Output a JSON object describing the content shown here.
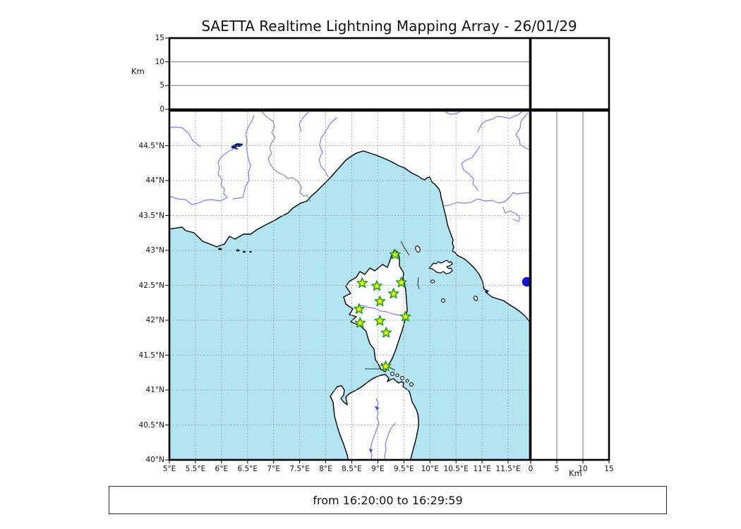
{
  "title": "SAETTA Realtime Lightning Mapping Array - 26/01/29",
  "status_bar": {
    "text": "from 16:20:00 to 16:29:59"
  },
  "axes": {
    "altitude_unit": "Km",
    "top_panel_ticks": [
      {
        "label": "15",
        "value": 15
      },
      {
        "label": "10",
        "value": 10
      },
      {
        "label": "5",
        "value": 5
      },
      {
        "label": "0",
        "value": 0
      }
    ],
    "right_panel_ticks": [
      {
        "label": "0",
        "value": 0
      },
      {
        "label": "5",
        "value": 5
      },
      {
        "label": "10",
        "value": 10
      },
      {
        "label": "15",
        "value": 15
      }
    ],
    "lon_ticks": [
      {
        "label": "5°E",
        "value": 5
      },
      {
        "label": "5.5°E",
        "value": 5.5
      },
      {
        "label": "6°E",
        "value": 6
      },
      {
        "label": "6.5°E",
        "value": 6.5
      },
      {
        "label": "7°E",
        "value": 7
      },
      {
        "label": "7.5°E",
        "value": 7.5
      },
      {
        "label": "8°E",
        "value": 8
      },
      {
        "label": "8.5°E",
        "value": 8.5
      },
      {
        "label": "9°E",
        "value": 9
      },
      {
        "label": "9.5°E",
        "value": 9.5
      },
      {
        "label": "10°E",
        "value": 10
      },
      {
        "label": "10.5°E",
        "value": 10.5
      },
      {
        "label": "11°E",
        "value": 11
      },
      {
        "label": "11.5°E",
        "value": 11.5
      }
    ],
    "lat_ticks": [
      {
        "label": "44.5°N",
        "value": 44.5
      },
      {
        "label": "44°N",
        "value": 44
      },
      {
        "label": "43.5°N",
        "value": 43.5
      },
      {
        "label": "43°N",
        "value": 43
      },
      {
        "label": "42.5°N",
        "value": 42.5
      },
      {
        "label": "42°N",
        "value": 42
      },
      {
        "label": "41.5°N",
        "value": 41.5
      },
      {
        "label": "41°N",
        "value": 41
      },
      {
        "label": "40.5°N",
        "value": 40.5
      },
      {
        "label": "40°N",
        "value": 40
      }
    ]
  },
  "chart_data": {
    "type": "scatter",
    "title": "SAETTA Realtime Lightning Mapping Array - 26/01/29",
    "date": "26/01/29",
    "time_window": {
      "from": "16:20:00",
      "to": "16:29:59"
    },
    "map_panel": {
      "region": "Western Mediterranean: southern France / NW Italy coast, Corsica, Sardinia, Elba",
      "lon_range": [
        5,
        11.93
      ],
      "lat_range": [
        40,
        45
      ],
      "grid": true,
      "sea_color": "#b2e4f2",
      "land_color": "#ffffff",
      "river_color": "#7c7cf0",
      "border_color": "#8a8a8a",
      "lake_color": "#001580",
      "grid_color": "#999999"
    },
    "altitude_panels": {
      "ylabel": "Km",
      "range": [
        0,
        15
      ],
      "ticks": [
        0,
        5,
        10,
        15
      ],
      "content": "empty"
    },
    "station_marker": {
      "shape": "star",
      "fill": "#ffee00",
      "edge": "#1fa41f"
    },
    "stations": [
      {
        "lon": 9.33,
        "lat": 42.94
      },
      {
        "lon": 8.7,
        "lat": 42.53
      },
      {
        "lon": 8.98,
        "lat": 42.49
      },
      {
        "lon": 9.45,
        "lat": 42.54
      },
      {
        "lon": 9.3,
        "lat": 42.38
      },
      {
        "lon": 9.04,
        "lat": 42.27
      },
      {
        "lon": 8.64,
        "lat": 42.16
      },
      {
        "lon": 9.53,
        "lat": 42.05
      },
      {
        "lon": 8.66,
        "lat": 41.96
      },
      {
        "lon": 9.04,
        "lat": 41.99
      },
      {
        "lon": 9.16,
        "lat": 41.82
      },
      {
        "lon": 9.15,
        "lat": 41.34
      }
    ],
    "other_marker": {
      "shape": "circle",
      "lon": 11.86,
      "lat": 42.55,
      "color": "#1414cc"
    }
  }
}
